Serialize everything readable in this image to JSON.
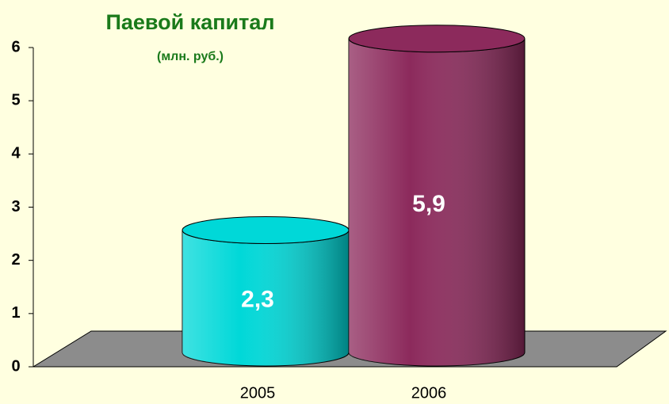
{
  "chart_data": {
    "type": "bar",
    "title": "Паевой капитал",
    "subtitle": "(млн. руб.)",
    "categories": [
      "2005",
      "2006"
    ],
    "values": [
      2.3,
      5.9
    ],
    "value_labels": [
      "2,3",
      "5,9"
    ],
    "colors": [
      "#00d8d8",
      "#8c2a5c"
    ],
    "ylim": [
      0,
      6
    ],
    "yticks": [
      0,
      1,
      2,
      3,
      4,
      5,
      6
    ]
  }
}
